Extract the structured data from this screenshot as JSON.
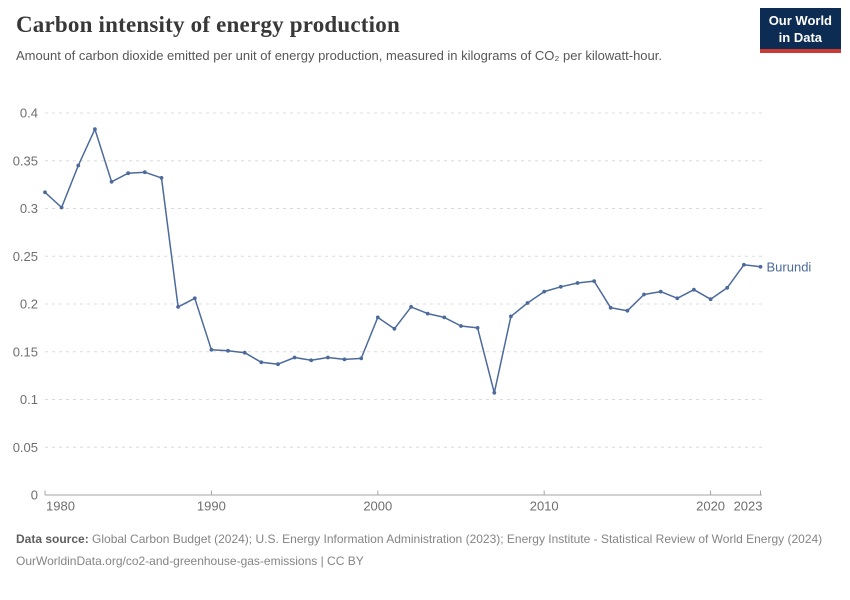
{
  "chart_data": {
    "type": "line",
    "title": "Carbon intensity of energy production",
    "subtitle": "Amount of carbon dioxide emitted per unit of energy production, measured in kilograms of CO₂ per kilowatt-hour.",
    "x": [
      1980,
      1981,
      1982,
      1983,
      1984,
      1985,
      1986,
      1987,
      1988,
      1989,
      1990,
      1991,
      1992,
      1993,
      1994,
      1995,
      1996,
      1997,
      1998,
      1999,
      2000,
      2001,
      2002,
      2003,
      2004,
      2005,
      2006,
      2007,
      2008,
      2009,
      2010,
      2011,
      2012,
      2013,
      2014,
      2015,
      2016,
      2017,
      2018,
      2019,
      2020,
      2021,
      2022,
      2023
    ],
    "series": [
      {
        "name": "Burundi",
        "color": "#4C6A9C",
        "values": [
          0.317,
          0.301,
          0.345,
          0.383,
          0.328,
          0.337,
          0.338,
          0.332,
          0.197,
          0.206,
          0.152,
          0.151,
          0.149,
          0.139,
          0.137,
          0.144,
          0.141,
          0.144,
          0.142,
          0.143,
          0.186,
          0.174,
          0.197,
          0.19,
          0.186,
          0.177,
          0.175,
          0.107,
          0.187,
          0.201,
          0.213,
          0.218,
          0.222,
          0.224,
          0.196,
          0.193,
          0.21,
          0.213,
          0.206,
          0.215,
          0.205,
          0.217,
          0.241,
          0.239
        ]
      }
    ],
    "xlabel": "",
    "ylabel": "",
    "xlim": [
      1980,
      2023
    ],
    "ylim": [
      0,
      0.4
    ],
    "x_ticks": [
      1980,
      1990,
      2000,
      2010,
      2020,
      2023
    ],
    "y_ticks": [
      0,
      0.05,
      0.1,
      0.15,
      0.2,
      0.25,
      0.3,
      0.35,
      0.4
    ],
    "grid": true,
    "legend_position": "end-of-line-label"
  },
  "logo": {
    "line1": "Our World",
    "line2": "in Data",
    "bg_color": "#0d2c54",
    "accent_color": "#cc3b33"
  },
  "footer": {
    "source_label": "Data source:",
    "source_text": " Global Carbon Budget (2024); U.S. Energy Information Administration (2023); Energy Institute - Statistical Review of World Energy (2024)",
    "citation": "OurWorldinData.org/co2-and-greenhouse-gas-emissions | CC BY"
  },
  "colors": {
    "line": "#4C6A9C",
    "gridline": "#dcdcdc",
    "axis": "#a5a5a5"
  }
}
